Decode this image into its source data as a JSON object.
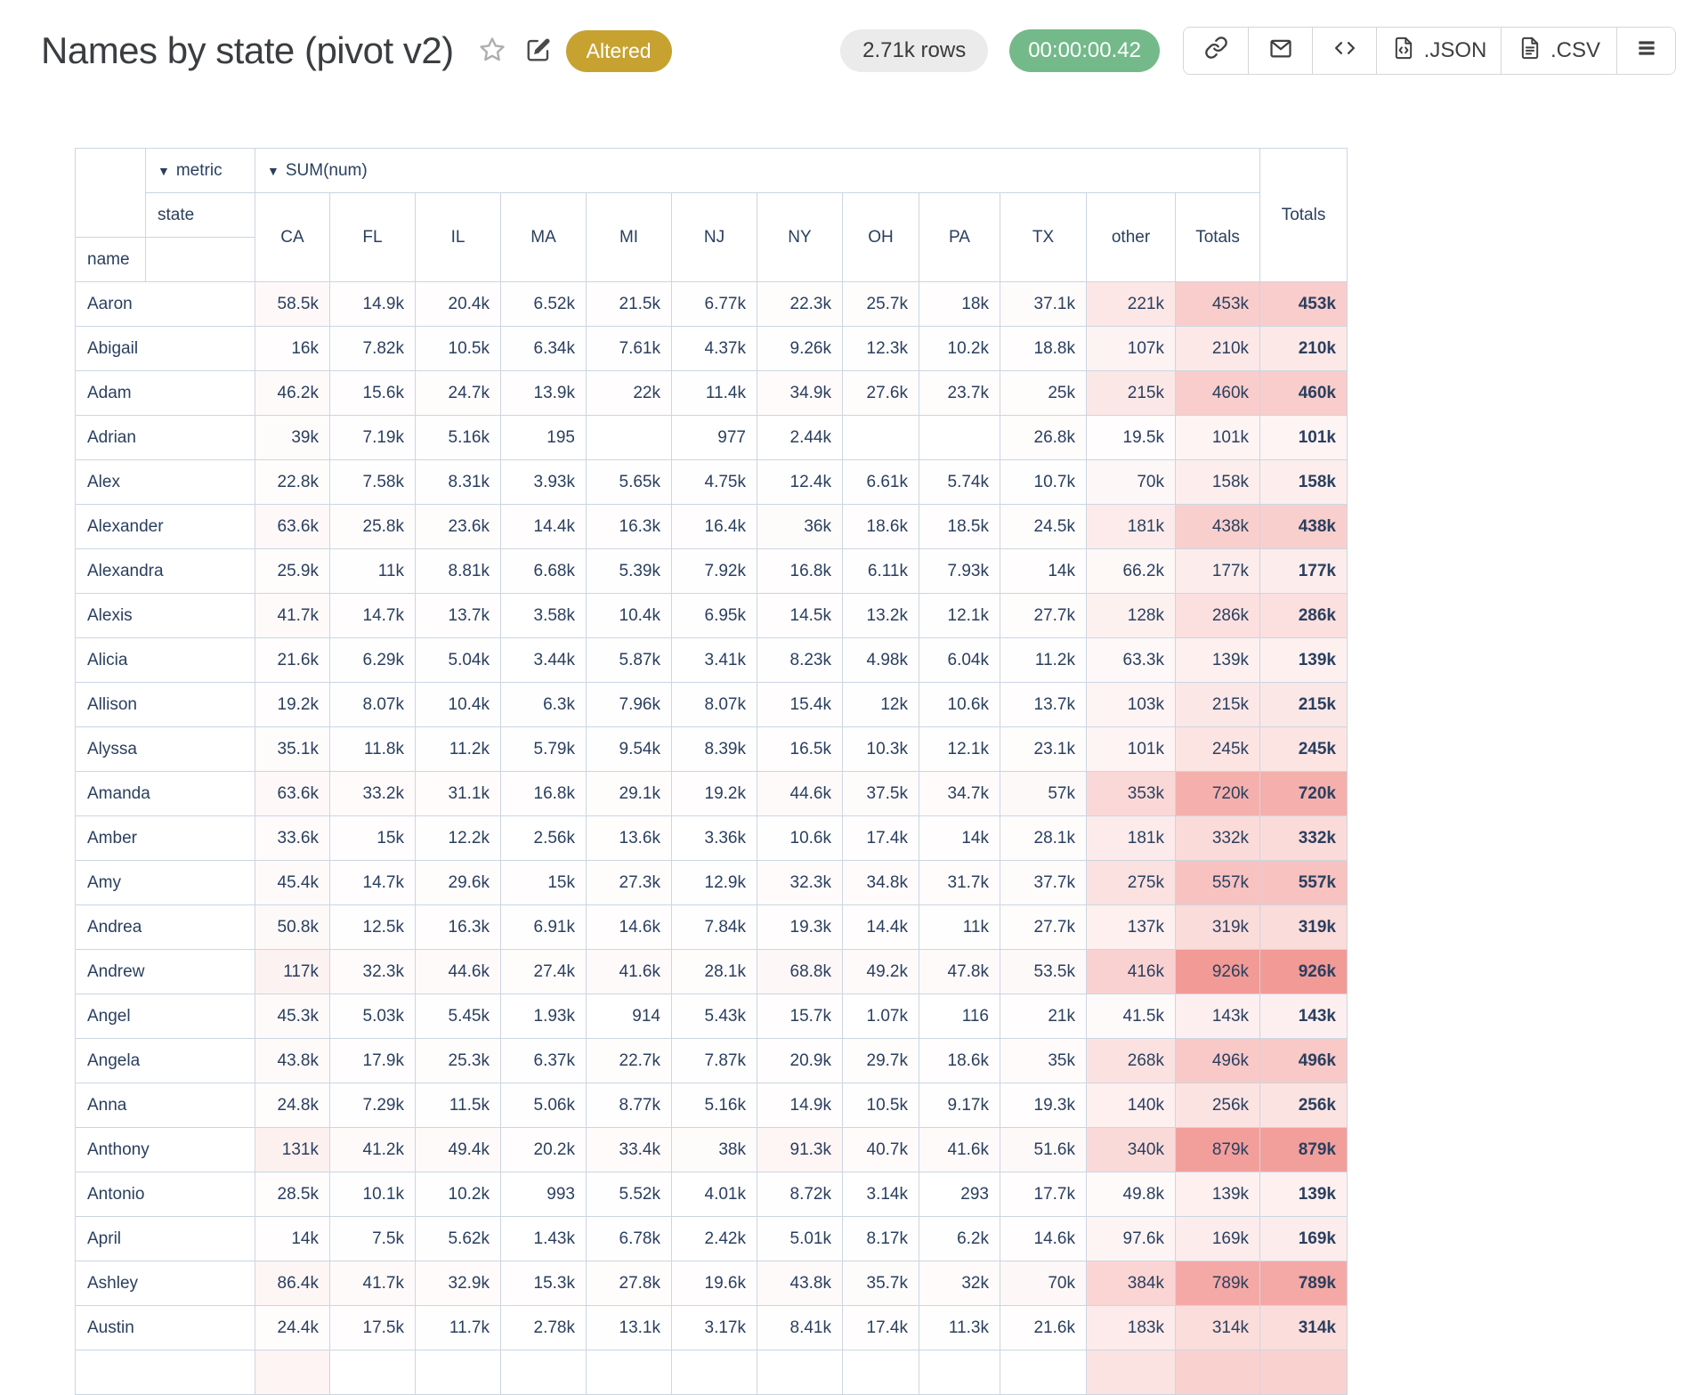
{
  "header": {
    "title": "Names by state (pivot v2)",
    "status_badge": "Altered",
    "rows_badge": "2.71k rows",
    "timer_badge": "00:00:00.42",
    "colors": {
      "status_badge_bg": "#c7a231",
      "timer_badge_bg": "#74b98a",
      "rows_badge_bg": "#ebebeb"
    },
    "toolbar": {
      "json_label": ".JSON",
      "csv_label": ".CSV"
    }
  },
  "pivot": {
    "dropdown_arrow": "▼",
    "metric_label": "metric",
    "aggregator_label": "SUM(num)",
    "state_label": "state",
    "name_label": "name",
    "totals_label": "Totals",
    "col_totals_label": "Totals",
    "colors": {
      "text": "#2a3f5f",
      "border": "#cbd6e2",
      "heat_base": "#f08c88"
    },
    "columns": [
      "CA",
      "FL",
      "IL",
      "MA",
      "MI",
      "NJ",
      "NY",
      "OH",
      "PA",
      "TX",
      "other",
      "Totals"
    ],
    "rows": [
      {
        "name": "Aaron",
        "values": [
          "58.5k",
          "14.9k",
          "20.4k",
          "6.52k",
          "21.5k",
          "6.77k",
          "22.3k",
          "25.7k",
          "18k",
          "37.1k",
          "221k",
          "453k"
        ],
        "total": "453k"
      },
      {
        "name": "Abigail",
        "values": [
          "16k",
          "7.82k",
          "10.5k",
          "6.34k",
          "7.61k",
          "4.37k",
          "9.26k",
          "12.3k",
          "10.2k",
          "18.8k",
          "107k",
          "210k"
        ],
        "total": "210k"
      },
      {
        "name": "Adam",
        "values": [
          "46.2k",
          "15.6k",
          "24.7k",
          "13.9k",
          "22k",
          "11.4k",
          "34.9k",
          "27.6k",
          "23.7k",
          "25k",
          "215k",
          "460k"
        ],
        "total": "460k"
      },
      {
        "name": "Adrian",
        "values": [
          "39k",
          "7.19k",
          "5.16k",
          "195",
          "",
          "977",
          "2.44k",
          "",
          "",
          "26.8k",
          "19.5k",
          "101k"
        ],
        "total": "101k"
      },
      {
        "name": "Alex",
        "values": [
          "22.8k",
          "7.58k",
          "8.31k",
          "3.93k",
          "5.65k",
          "4.75k",
          "12.4k",
          "6.61k",
          "5.74k",
          "10.7k",
          "70k",
          "158k"
        ],
        "total": "158k"
      },
      {
        "name": "Alexander",
        "values": [
          "63.6k",
          "25.8k",
          "23.6k",
          "14.4k",
          "16.3k",
          "16.4k",
          "36k",
          "18.6k",
          "18.5k",
          "24.5k",
          "181k",
          "438k"
        ],
        "total": "438k"
      },
      {
        "name": "Alexandra",
        "values": [
          "25.9k",
          "11k",
          "8.81k",
          "6.68k",
          "5.39k",
          "7.92k",
          "16.8k",
          "6.11k",
          "7.93k",
          "14k",
          "66.2k",
          "177k"
        ],
        "total": "177k"
      },
      {
        "name": "Alexis",
        "values": [
          "41.7k",
          "14.7k",
          "13.7k",
          "3.58k",
          "10.4k",
          "6.95k",
          "14.5k",
          "13.2k",
          "12.1k",
          "27.7k",
          "128k",
          "286k"
        ],
        "total": "286k"
      },
      {
        "name": "Alicia",
        "values": [
          "21.6k",
          "6.29k",
          "5.04k",
          "3.44k",
          "5.87k",
          "3.41k",
          "8.23k",
          "4.98k",
          "6.04k",
          "11.2k",
          "63.3k",
          "139k"
        ],
        "total": "139k"
      },
      {
        "name": "Allison",
        "values": [
          "19.2k",
          "8.07k",
          "10.4k",
          "6.3k",
          "7.96k",
          "8.07k",
          "15.4k",
          "12k",
          "10.6k",
          "13.7k",
          "103k",
          "215k"
        ],
        "total": "215k"
      },
      {
        "name": "Alyssa",
        "values": [
          "35.1k",
          "11.8k",
          "11.2k",
          "5.79k",
          "9.54k",
          "8.39k",
          "16.5k",
          "10.3k",
          "12.1k",
          "23.1k",
          "101k",
          "245k"
        ],
        "total": "245k"
      },
      {
        "name": "Amanda",
        "values": [
          "63.6k",
          "33.2k",
          "31.1k",
          "16.8k",
          "29.1k",
          "19.2k",
          "44.6k",
          "37.5k",
          "34.7k",
          "57k",
          "353k",
          "720k"
        ],
        "total": "720k"
      },
      {
        "name": "Amber",
        "values": [
          "33.6k",
          "15k",
          "12.2k",
          "2.56k",
          "13.6k",
          "3.36k",
          "10.6k",
          "17.4k",
          "14k",
          "28.1k",
          "181k",
          "332k"
        ],
        "total": "332k"
      },
      {
        "name": "Amy",
        "values": [
          "45.4k",
          "14.7k",
          "29.6k",
          "15k",
          "27.3k",
          "12.9k",
          "32.3k",
          "34.8k",
          "31.7k",
          "37.7k",
          "275k",
          "557k"
        ],
        "total": "557k"
      },
      {
        "name": "Andrea",
        "values": [
          "50.8k",
          "12.5k",
          "16.3k",
          "6.91k",
          "14.6k",
          "7.84k",
          "19.3k",
          "14.4k",
          "11k",
          "27.7k",
          "137k",
          "319k"
        ],
        "total": "319k"
      },
      {
        "name": "Andrew",
        "values": [
          "117k",
          "32.3k",
          "44.6k",
          "27.4k",
          "41.6k",
          "28.1k",
          "68.8k",
          "49.2k",
          "47.8k",
          "53.5k",
          "416k",
          "926k"
        ],
        "total": "926k"
      },
      {
        "name": "Angel",
        "values": [
          "45.3k",
          "5.03k",
          "5.45k",
          "1.93k",
          "914",
          "5.43k",
          "15.7k",
          "1.07k",
          "116",
          "21k",
          "41.5k",
          "143k"
        ],
        "total": "143k"
      },
      {
        "name": "Angela",
        "values": [
          "43.8k",
          "17.9k",
          "25.3k",
          "6.37k",
          "22.7k",
          "7.87k",
          "20.9k",
          "29.7k",
          "18.6k",
          "35k",
          "268k",
          "496k"
        ],
        "total": "496k"
      },
      {
        "name": "Anna",
        "values": [
          "24.8k",
          "7.29k",
          "11.5k",
          "5.06k",
          "8.77k",
          "5.16k",
          "14.9k",
          "10.5k",
          "9.17k",
          "19.3k",
          "140k",
          "256k"
        ],
        "total": "256k"
      },
      {
        "name": "Anthony",
        "values": [
          "131k",
          "41.2k",
          "49.4k",
          "20.2k",
          "33.4k",
          "38k",
          "91.3k",
          "40.7k",
          "41.6k",
          "51.6k",
          "340k",
          "879k"
        ],
        "total": "879k"
      },
      {
        "name": "Antonio",
        "values": [
          "28.5k",
          "10.1k",
          "10.2k",
          "993",
          "5.52k",
          "4.01k",
          "8.72k",
          "3.14k",
          "293",
          "17.7k",
          "49.8k",
          "139k"
        ],
        "total": "139k"
      },
      {
        "name": "April",
        "values": [
          "14k",
          "7.5k",
          "5.62k",
          "1.43k",
          "6.78k",
          "2.42k",
          "5.01k",
          "8.17k",
          "6.2k",
          "14.6k",
          "97.6k",
          "169k"
        ],
        "total": "169k"
      },
      {
        "name": "Ashley",
        "values": [
          "86.4k",
          "41.7k",
          "32.9k",
          "15.3k",
          "27.8k",
          "19.6k",
          "43.8k",
          "35.7k",
          "32k",
          "70k",
          "384k",
          "789k"
        ],
        "total": "789k"
      },
      {
        "name": "Austin",
        "values": [
          "24.4k",
          "17.5k",
          "11.7k",
          "2.78k",
          "13.1k",
          "3.17k",
          "8.41k",
          "17.4k",
          "11.3k",
          "21.6k",
          "183k",
          "314k"
        ],
        "total": "314k"
      }
    ],
    "cutoff_row_colors": [
      "#fdf4f3",
      "",
      "",
      "",
      "",
      "",
      "",
      "",
      "",
      "",
      "#fbe3e1",
      "#f9d2cf",
      "#f9d2cf"
    ]
  }
}
